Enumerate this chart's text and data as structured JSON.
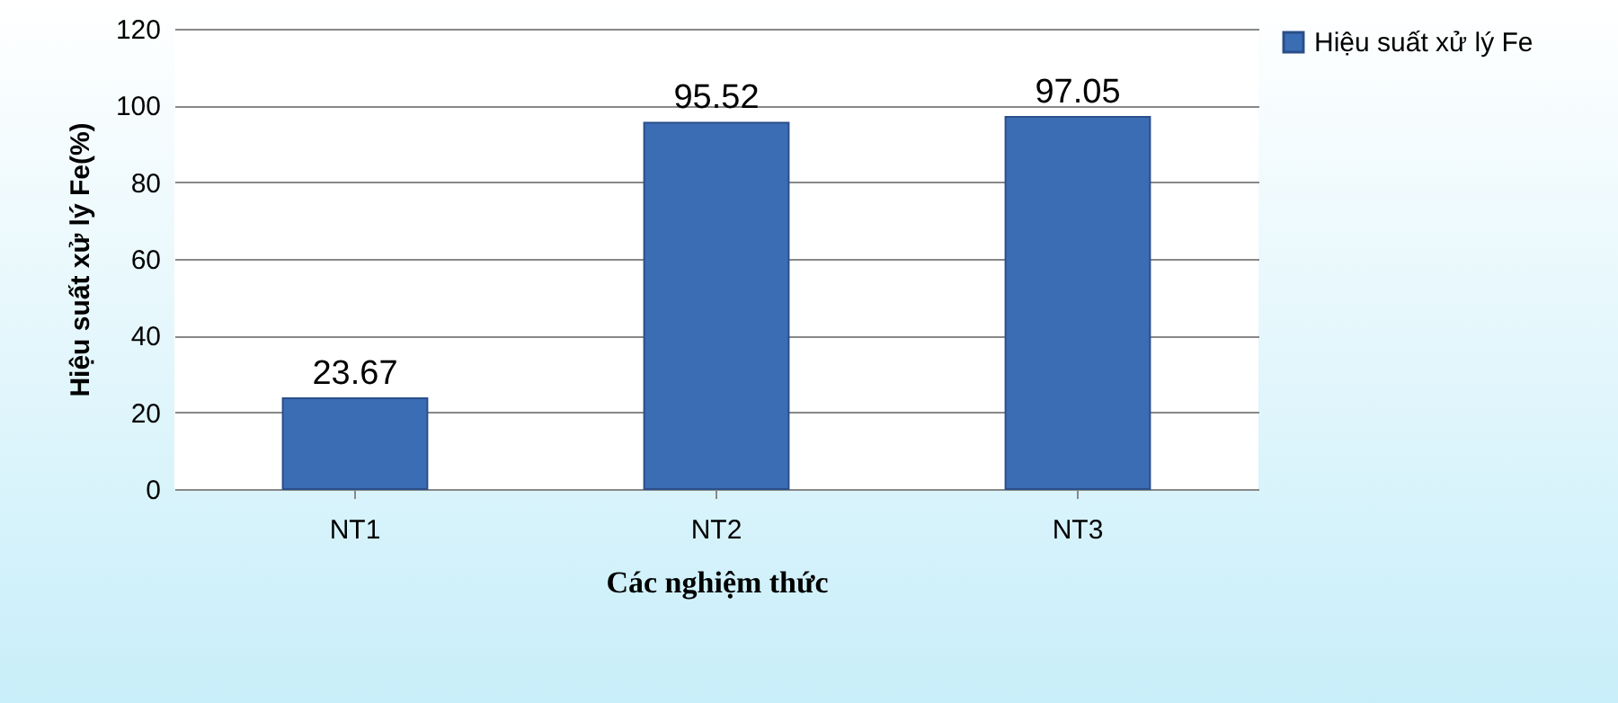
{
  "chart_data": {
    "type": "bar",
    "xlabel": "Các nghiệm thức",
    "ylabel": "Hiệu suất xử lý Fe(%)",
    "categories": [
      "NT1",
      "NT2",
      "NT3"
    ],
    "series": [
      {
        "name": "Hiệu suất xử lý Fe",
        "color": "#3b6db5",
        "values": [
          23.67,
          95.52,
          97.05
        ]
      }
    ],
    "ylim": [
      0,
      120
    ],
    "yticks": [
      0,
      20,
      40,
      60,
      80,
      100,
      120
    ],
    "grid": "y",
    "legend": "right",
    "data_labels": true
  }
}
